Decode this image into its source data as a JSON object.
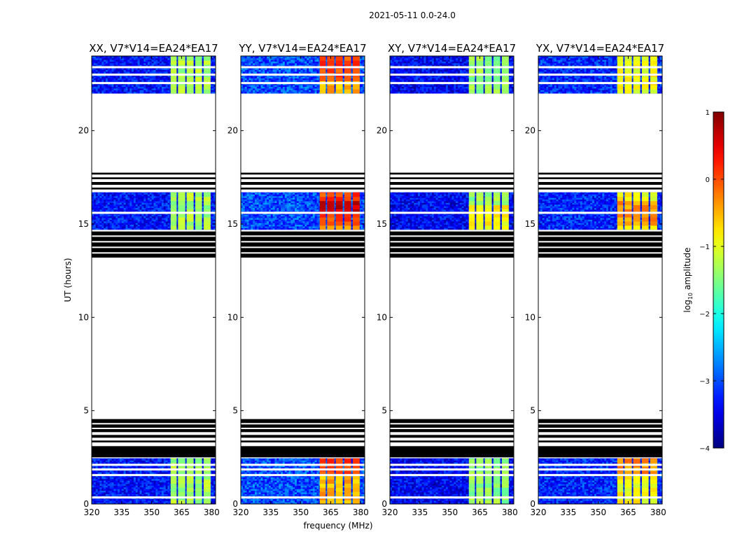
{
  "figure": {
    "suptitle": "2021-05-11 0.0-24.0",
    "xlabel": "frequency (MHz)",
    "ylabel": "UT (hours)"
  },
  "chart_data": {
    "type": "heatmap",
    "title": "2021-05-11 0.0-24.0",
    "xlabel": "frequency (MHz)",
    "ylabel": "UT (hours)",
    "xlim": [
      320,
      382
    ],
    "ylim": [
      0,
      24
    ],
    "xticks": [
      320,
      335,
      350,
      365,
      380
    ],
    "yticks": [
      0,
      5,
      10,
      15,
      20
    ],
    "colormap": "jet",
    "panels": [
      {
        "name": "XX",
        "title": "XX, V7*V14=EA24*EA17",
        "band_level": -1.3,
        "band_hot_rows": [],
        "background_level": -3.3
      },
      {
        "name": "YY",
        "title": "YY, V7*V14=EA24*EA17",
        "band_level": -0.5,
        "band_hot_rows": [
          15.5,
          16.2,
          2.1,
          23.3
        ],
        "background_level": -3.0
      },
      {
        "name": "XY",
        "title": "XY, V7*V14=EA24*EA17",
        "band_level": -1.4,
        "band_hot_rows": [
          15.3
        ],
        "background_level": -3.4
      },
      {
        "name": "YX",
        "title": "YX, V7*V14=EA24*EA17",
        "band_level": -0.9,
        "band_hot_rows": [
          15.4,
          2.2
        ],
        "background_level": -3.2
      }
    ],
    "data_segments_ut": [
      [
        0.0,
        2.45
      ],
      [
        14.7,
        16.7
      ],
      [
        22.0,
        24.0
      ]
    ],
    "band_columns_mhz": [
      [
        359.5,
        362.5
      ],
      [
        363.2,
        366.8
      ],
      [
        367.5,
        371.0
      ],
      [
        371.8,
        375.2
      ],
      [
        376.0,
        379.5
      ]
    ],
    "empty_rows_ut": [
      0.35,
      1.55,
      1.85,
      2.1,
      15.6,
      22.55,
      23.0,
      23.4
    ],
    "flagged_black_bands_ut": [
      [
        2.5,
        3.1
      ],
      [
        3.3,
        3.4
      ],
      [
        3.55,
        3.7
      ],
      [
        3.85,
        4.55
      ],
      [
        13.2,
        14.6
      ],
      [
        16.85,
        16.95
      ],
      [
        17.1,
        17.25
      ],
      [
        17.4,
        17.5
      ],
      [
        17.65,
        17.75
      ]
    ],
    "colorbar": {
      "label": "log₁₀ amplitude",
      "label_base": "log",
      "label_sub": "10",
      "label_rest": " amplitude",
      "min": -4,
      "max": 1,
      "ticks": [
        1,
        0,
        -1,
        -2,
        -3,
        -4
      ],
      "tick_labels": [
        "1",
        "0",
        "−1",
        "−2",
        "−3",
        "−4"
      ]
    }
  }
}
